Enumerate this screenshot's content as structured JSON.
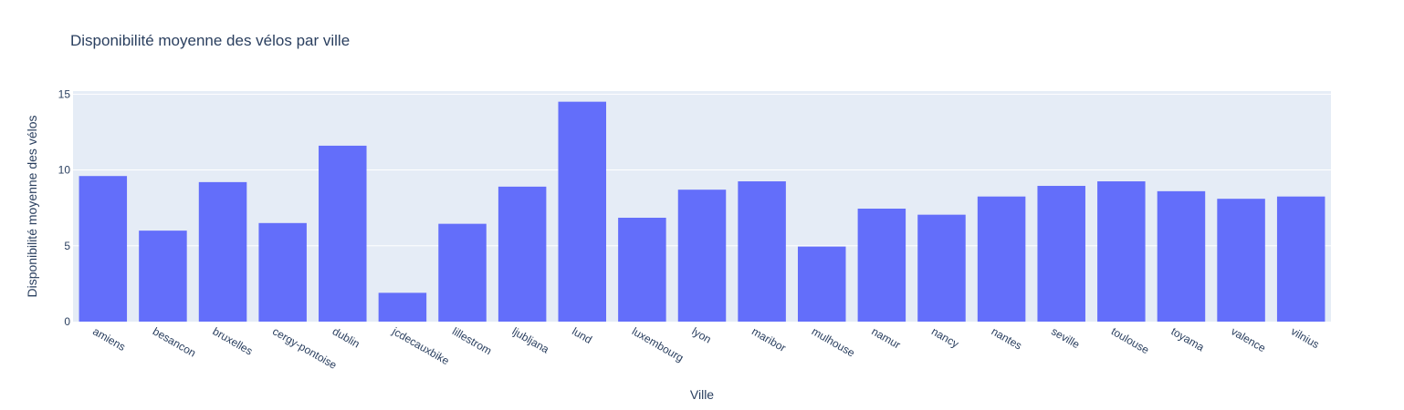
{
  "chart_data": {
    "type": "bar",
    "title": "Disponibilité moyenne des vélos par ville",
    "xlabel": "Ville",
    "ylabel": "Disponibilité moyenne des vélos",
    "categories": [
      "amiens",
      "besancon",
      "bruxelles",
      "cergy-pontoise",
      "dublin",
      "jcdecauxbike",
      "lillestrom",
      "ljubljana",
      "lund",
      "luxembourg",
      "lyon",
      "maribor",
      "mulhouse",
      "namur",
      "nancy",
      "nantes",
      "seville",
      "toulouse",
      "toyama",
      "valence",
      "vilnius"
    ],
    "values": [
      9.6,
      6.0,
      9.2,
      6.5,
      11.6,
      1.9,
      6.45,
      8.9,
      14.5,
      6.85,
      8.7,
      9.25,
      4.95,
      7.45,
      7.05,
      8.25,
      8.95,
      9.25,
      8.6,
      8.1,
      8.25
    ],
    "ylim": [
      0,
      15.2
    ],
    "yticks": [
      0,
      5,
      10,
      15
    ],
    "grid": true,
    "colors": {
      "bar": "#636efa",
      "plot_bg": "#e5ecf6",
      "grid": "#ffffff",
      "text": "#2a3f5f"
    }
  }
}
